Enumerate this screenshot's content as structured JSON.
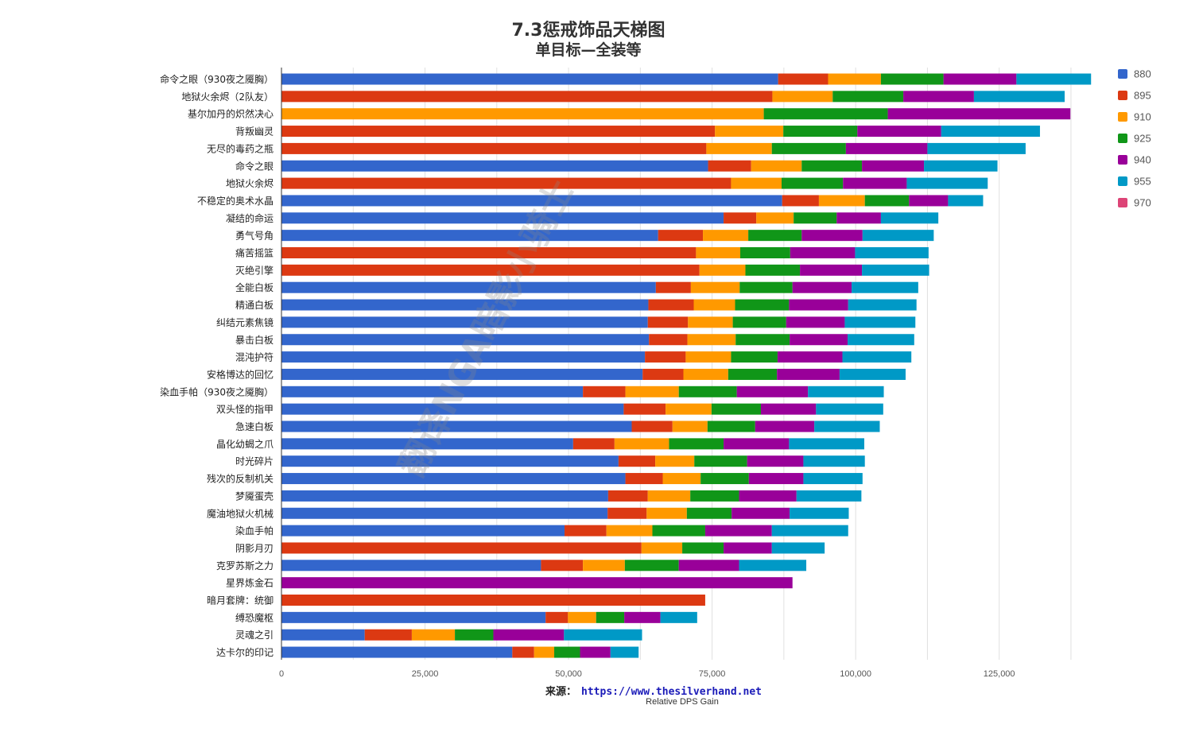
{
  "chart_data": {
    "type": "bar",
    "orientation": "horizontal",
    "stacked": true,
    "title": "7.3惩戒饰品天梯图",
    "subtitle": "单目标—全装等",
    "xlabel": "Relative DPS Gain",
    "source_label": "来源：",
    "source_url": "https://www.thesilverhand.net",
    "xlim": [
      0,
      140000
    ],
    "xticks": [
      0,
      25000,
      50000,
      75000,
      100000,
      125000
    ],
    "xtick_labels": [
      "0",
      "25,000",
      "50,000",
      "75,000",
      "100,000",
      "125,000"
    ],
    "grid": true,
    "legend_position": "right",
    "series": [
      {
        "name": "880",
        "color": "#3366cc"
      },
      {
        "name": "895",
        "color": "#dc3912"
      },
      {
        "name": "910",
        "color": "#ff9900"
      },
      {
        "name": "925",
        "color": "#109618"
      },
      {
        "name": "940",
        "color": "#990099"
      },
      {
        "name": "955",
        "color": "#0099c6"
      },
      {
        "name": "970",
        "color": "#dd4477"
      }
    ],
    "bars": [
      {
        "label": "命令之眼（930夜之魇胸）",
        "start": 0,
        "values": [
          86500,
          8700,
          9200,
          10900,
          12700,
          13000,
          0
        ]
      },
      {
        "label": "地狱火余烬（2队友）",
        "start": 1,
        "values": [
          85500,
          10500,
          12300,
          12300,
          15800,
          0
        ]
      },
      {
        "label": "基尔加丹的炽然决心",
        "start": 2,
        "values": [
          84000,
          21600,
          31800
        ]
      },
      {
        "label": "背叛幽灵",
        "start": 1,
        "values": [
          75500,
          11900,
          12900,
          14600,
          17200,
          0
        ]
      },
      {
        "label": "无尽的毒药之瓶",
        "start": 1,
        "values": [
          74000,
          11400,
          12900,
          14200,
          17100,
          0
        ]
      },
      {
        "label": "命令之眼",
        "start": 0,
        "values": [
          74300,
          7500,
          8800,
          10500,
          10800,
          12800
        ]
      },
      {
        "label": "地狱火余烬",
        "start": 1,
        "values": [
          78300,
          8800,
          10700,
          11100,
          14100
        ]
      },
      {
        "label": "不稳定的奥术水晶",
        "start": 0,
        "values": [
          87200,
          6400,
          8000,
          7700,
          6800,
          6100
        ]
      },
      {
        "label": "凝结的命运",
        "start": 0,
        "values": [
          77000,
          5700,
          6500,
          7500,
          7700,
          10000
        ]
      },
      {
        "label": "勇气号角",
        "start": 0,
        "values": [
          65600,
          7800,
          7900,
          9300,
          10600,
          12400
        ]
      },
      {
        "label": "痛苦摇篮",
        "start": 1,
        "values": [
          72200,
          7700,
          8700,
          11300,
          12800
        ]
      },
      {
        "label": "灭绝引擎",
        "start": 1,
        "values": [
          72800,
          8000,
          9500,
          10800,
          11700
        ]
      },
      {
        "label": "全能白板",
        "start": 0,
        "values": [
          65200,
          6100,
          8500,
          9200,
          10300,
          11600
        ]
      },
      {
        "label": "精通白板",
        "start": 0,
        "values": [
          63900,
          7900,
          7200,
          9400,
          10300,
          11900
        ]
      },
      {
        "label": "纠结元素焦镜",
        "start": 0,
        "values": [
          63800,
          7000,
          7800,
          9300,
          10200,
          12300
        ]
      },
      {
        "label": "暴击白板",
        "start": 0,
        "values": [
          64000,
          6700,
          8400,
          9400,
          10100,
          11600
        ]
      },
      {
        "label": "混沌护符",
        "start": 0,
        "values": [
          63300,
          7100,
          7900,
          8100,
          11300,
          12000
        ]
      },
      {
        "label": "安格博达的回忆",
        "start": 0,
        "values": [
          62900,
          7100,
          7800,
          8500,
          10900,
          11500
        ]
      },
      {
        "label": "染血手帕（930夜之魇胸）",
        "start": 0,
        "values": [
          52500,
          7400,
          9300,
          10100,
          12400,
          13200
        ]
      },
      {
        "label": "双头怪的指甲",
        "start": 0,
        "values": [
          59600,
          7300,
          8000,
          8600,
          9600,
          11700
        ]
      },
      {
        "label": "急速白板",
        "start": 0,
        "values": [
          61000,
          7100,
          6100,
          8300,
          10300,
          11400
        ]
      },
      {
        "label": "晶化幼蝎之爪",
        "start": 0,
        "values": [
          50800,
          7200,
          9500,
          9500,
          11400,
          13100
        ]
      },
      {
        "label": "时光碎片",
        "start": 0,
        "values": [
          58700,
          6400,
          6800,
          9200,
          9800,
          10700
        ]
      },
      {
        "label": "残次的反制机关",
        "start": 0,
        "values": [
          59900,
          6500,
          6600,
          8400,
          9500,
          10300
        ]
      },
      {
        "label": "梦魇蛋壳",
        "start": 0,
        "values": [
          56900,
          6900,
          7400,
          8500,
          10000,
          11300
        ]
      },
      {
        "label": "魔油地狱火机械",
        "start": 0,
        "values": [
          56800,
          6800,
          7000,
          7800,
          10100,
          10300
        ]
      },
      {
        "label": "染血手帕",
        "start": 0,
        "values": [
          49300,
          7300,
          8000,
          9200,
          11600,
          13300
        ]
      },
      {
        "label": "阴影月刃",
        "start": 1,
        "values": [
          62700,
          7100,
          7200,
          8400,
          9200
        ]
      },
      {
        "label": "克罗苏斯之力",
        "start": 0,
        "values": [
          45200,
          7300,
          7300,
          9400,
          10500,
          11700
        ]
      },
      {
        "label": "星界炼金石",
        "start": 4,
        "values": [
          89000
        ]
      },
      {
        "label": "暗月套牌：统御",
        "start": 1,
        "values": [
          73800
        ]
      },
      {
        "label": "缚恐魔枢",
        "start": 0,
        "values": [
          46000,
          3900,
          4900,
          4900,
          6300,
          6400
        ]
      },
      {
        "label": "灵魂之引",
        "start": 0,
        "values": [
          14500,
          8200,
          7500,
          6700,
          12300,
          13600
        ]
      },
      {
        "label": "达卡尔的印记",
        "start": 0,
        "values": [
          40200,
          3800,
          3500,
          4500,
          5300,
          4900
        ]
      }
    ]
  },
  "watermark": "翻译NGA暗影小骑士"
}
